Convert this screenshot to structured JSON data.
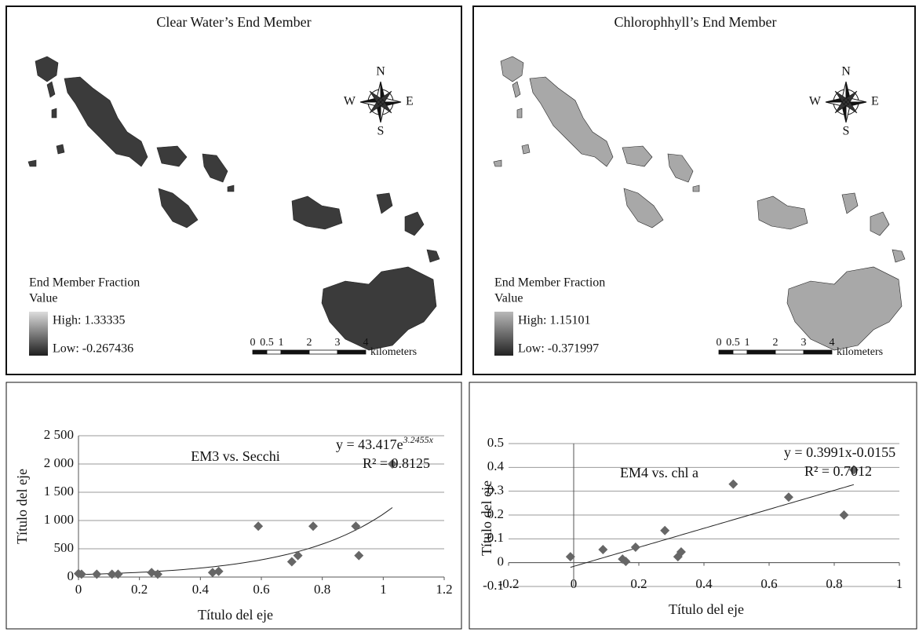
{
  "maps": [
    {
      "title": "Clear Water’s End Member",
      "legend_title": [
        "End Member Fraction",
        "Value"
      ],
      "high_label": "High: 1.33335",
      "low_label": "Low: -0.267436",
      "scale_ticks": [
        0,
        0.5,
        1,
        2,
        3,
        4
      ],
      "scale_unit": "kilometers",
      "compass": {
        "n": "N",
        "s": "S",
        "w": "W",
        "e": "E"
      },
      "fill": "#3b3b3b",
      "gradient": [
        "#dcdcdc",
        "#1e1e1e"
      ]
    },
    {
      "title": "Chlorophhyll’s End Member",
      "legend_title": [
        "End Member Fraction",
        "Value"
      ],
      "high_label": "High: 1.15101",
      "low_label": "Low: -0.371997",
      "scale_ticks": [
        0,
        0.5,
        1,
        2,
        3,
        4
      ],
      "scale_unit": "kilometers",
      "compass": {
        "n": "N",
        "s": "S",
        "w": "W",
        "e": "E"
      },
      "fill": "#a8a8a8",
      "gradient": [
        "#b8b8b8",
        "#222222"
      ]
    }
  ],
  "chart_data": [
    {
      "type": "scatter",
      "title": "EM3 vs. Secchi",
      "equation": [
        "y = 43.417e",
        "3.2455x"
      ],
      "r_squared": "R² = 0.8125",
      "x_label": "Título del eje",
      "y_label": "Título del eje",
      "color": "#666666",
      "grid": true,
      "x": [
        0.0,
        0.01,
        0.06,
        0.11,
        0.13,
        0.24,
        0.26,
        0.44,
        0.46,
        0.59,
        0.7,
        0.72,
        0.77,
        0.91,
        0.92,
        1.03
      ],
      "values": [
        60,
        50,
        50,
        50,
        50,
        80,
        50,
        80,
        100,
        900,
        270,
        380,
        900,
        900,
        380,
        2000
      ],
      "trend": {
        "kind": "exponential",
        "a": 43.417,
        "b": 3.2455
      },
      "xlim": [
        0,
        1.2
      ],
      "xticks": [
        0,
        0.2,
        0.4,
        0.6,
        0.8,
        1,
        1.2
      ],
      "ylim": [
        0,
        2500
      ],
      "yticks": [
        0,
        500,
        {
          "value": 1000,
          "label": "1 000"
        },
        {
          "value": 1500,
          "label": "1 500"
        },
        {
          "value": 2000,
          "label": "2 000"
        },
        {
          "value": 2500,
          "label": "2 500"
        }
      ]
    },
    {
      "type": "scatter",
      "title": "EM4 vs. chl a",
      "equation": [
        "y = 0.3991x-0.0155"
      ],
      "r_squared": "R² = 0.7012",
      "x_label": "Título del eje",
      "y_label": "Título del eje",
      "color": "#666666",
      "grid": true,
      "x": [
        -0.01,
        0.09,
        0.15,
        0.16,
        0.19,
        0.28,
        0.32,
        0.33,
        0.49,
        0.66,
        0.83,
        0.86
      ],
      "values": [
        0.025,
        0.055,
        0.015,
        0.005,
        0.065,
        0.135,
        0.025,
        0.045,
        0.33,
        0.275,
        0.2,
        0.39
      ],
      "trend": {
        "kind": "linear",
        "slope": 0.3991,
        "intercept": -0.0155
      },
      "xlim": [
        -0.2,
        1
      ],
      "xticks": [
        -0.2,
        0,
        0.2,
        0.4,
        0.6,
        0.8,
        1
      ],
      "ylim": [
        -0.1,
        0.5
      ],
      "yticks": [
        -0.1,
        0,
        0.1,
        0.2,
        0.3,
        0.4,
        0.5
      ]
    }
  ]
}
